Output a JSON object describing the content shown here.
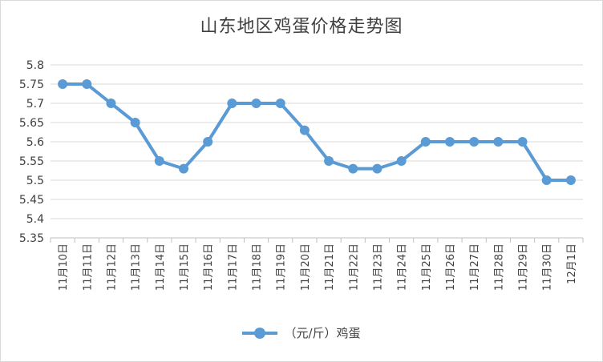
{
  "chart_data": {
    "type": "line",
    "title": "山东地区鸡蛋价格走势图",
    "categories": [
      "11月10日",
      "11月11日",
      "11月12日",
      "11月13日",
      "11月14日",
      "11月15日",
      "11月16日",
      "11月17日",
      "11月18日",
      "11月19日",
      "11月20日",
      "11月21日",
      "11月22日",
      "11月23日",
      "11月24日",
      "11月25日",
      "11月26日",
      "11月27日",
      "11月28日",
      "11月29日",
      "11月30日",
      "12月1日"
    ],
    "series": [
      {
        "name": "（元/斤）鸡蛋",
        "color": "#5b9bd5",
        "values": [
          5.75,
          5.75,
          5.7,
          5.65,
          5.55,
          5.53,
          5.6,
          5.7,
          5.7,
          5.7,
          5.63,
          5.55,
          5.53,
          5.53,
          5.55,
          5.6,
          5.6,
          5.6,
          5.6,
          5.6,
          5.5,
          5.5
        ]
      }
    ],
    "yticks": [
      "5.8",
      "5.75",
      "5.7",
      "5.65",
      "5.6",
      "5.55",
      "5.5",
      "5.45",
      "5.4",
      "5.35"
    ],
    "ylim": [
      5.35,
      5.8
    ],
    "xlabel": "",
    "ylabel": "",
    "grid": true,
    "legend": "bottom"
  }
}
